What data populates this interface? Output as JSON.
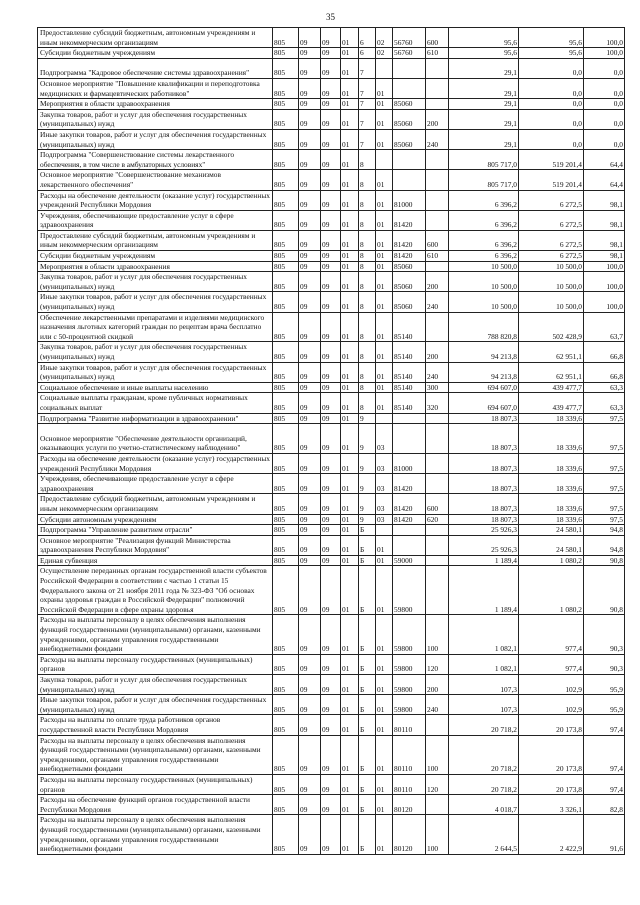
{
  "page_number": "35",
  "rows": [
    [
      "Предоставление субсидий бюджетным, автономным учреждениям и иным некоммерческим организациям",
      "805",
      "09",
      "09",
      "01",
      "6",
      "02",
      "56760",
      "600",
      "95,6",
      "95,6",
      "100,0"
    ],
    [
      "Субсидии бюджетным учреждениям",
      "805",
      "09",
      "09",
      "01",
      "6",
      "02",
      "56760",
      "610",
      "95,6",
      "95,6",
      "100,0"
    ],
    [
      "Подпрограмма \"Кадровое обеспечение системы здравоохранения\"",
      "805",
      "09",
      "09",
      "01",
      "7",
      "",
      "",
      "",
      "29,1",
      "0,0",
      "0,0"
    ],
    [
      "Основное мероприятие \"Повышение квалификации и переподготовка медицинских и фармацевтических работников\"",
      "805",
      "09",
      "09",
      "01",
      "7",
      "01",
      "",
      "",
      "29,1",
      "0,0",
      "0,0"
    ],
    [
      "Мероприятия в области здравоохранения",
      "805",
      "09",
      "09",
      "01",
      "7",
      "01",
      "85060",
      "",
      "29,1",
      "0,0",
      "0,0"
    ],
    [
      "Закупка товаров, работ и услуг для обеспечения государственных (муниципальных) нужд",
      "805",
      "09",
      "09",
      "01",
      "7",
      "01",
      "85060",
      "200",
      "29,1",
      "0,0",
      "0,0"
    ],
    [
      "Иные закупки товаров, работ и услуг для обеспечения государственных (муниципальных) нужд",
      "805",
      "09",
      "09",
      "01",
      "7",
      "01",
      "85060",
      "240",
      "29,1",
      "0,0",
      "0,0"
    ],
    [
      "Подпрограмма \"Совершенствование системы лекарственного обеспечения, в том числе в амбулаторных условиях\"",
      "805",
      "09",
      "09",
      "01",
      "8",
      "",
      "",
      "",
      "805 717,0",
      "519 201,4",
      "64,4"
    ],
    [
      "Основное мероприятие \"Совершенствование механизмов лекарственного обеспечения\"",
      "805",
      "09",
      "09",
      "01",
      "8",
      "01",
      "",
      "",
      "805 717,0",
      "519 201,4",
      "64,4"
    ],
    [
      "Расходы на обеспечение деятельности (оказание услуг) государственных учреждений Республики Мордовия",
      "805",
      "09",
      "09",
      "01",
      "8",
      "01",
      "81000",
      "",
      "6 396,2",
      "6 272,5",
      "98,1"
    ],
    [
      "Учреждения, обеспечивающие предоставление услуг в сфере здравоохранения",
      "805",
      "09",
      "09",
      "01",
      "8",
      "01",
      "81420",
      "",
      "6 396,2",
      "6 272,5",
      "98,1"
    ],
    [
      "Предоставление субсидий бюджетным, автономным учреждениям и иным некоммерческим организациям",
      "805",
      "09",
      "09",
      "01",
      "8",
      "01",
      "81420",
      "600",
      "6 396,2",
      "6 272,5",
      "98,1"
    ],
    [
      "Субсидии бюджетным учреждениям",
      "805",
      "09",
      "09",
      "01",
      "8",
      "01",
      "81420",
      "610",
      "6 396,2",
      "6 272,5",
      "98,1"
    ],
    [
      "Мероприятия в области здравоохранения",
      "805",
      "09",
      "09",
      "01",
      "8",
      "01",
      "85060",
      "",
      "10 500,0",
      "10 500,0",
      "100,0"
    ],
    [
      "Закупка товаров, работ и услуг для обеспечения государственных (муниципальных) нужд",
      "805",
      "09",
      "09",
      "01",
      "8",
      "01",
      "85060",
      "200",
      "10 500,0",
      "10 500,0",
      "100,0"
    ],
    [
      "Иные закупки товаров, работ и услуг для обеспечения государственных (муниципальных) нужд",
      "805",
      "09",
      "09",
      "01",
      "8",
      "01",
      "85060",
      "240",
      "10 500,0",
      "10 500,0",
      "100,0"
    ],
    [
      "Обеспечение лекарственными препаратами и изделиями медицинского назначения льготных категорий граждан по рецептам врача бесплатно или с 50-процентной скидкой",
      "805",
      "09",
      "09",
      "01",
      "8",
      "01",
      "85140",
      "",
      "788 820,8",
      "502 428,9",
      "63,7"
    ],
    [
      "Закупка товаров, работ и услуг для обеспечения государственных (муниципальных) нужд",
      "805",
      "09",
      "09",
      "01",
      "8",
      "01",
      "85140",
      "200",
      "94 213,8",
      "62 951,1",
      "66,8"
    ],
    [
      "Иные закупки товаров, работ и услуг для обеспечения государственных (муниципальных) нужд",
      "805",
      "09",
      "09",
      "01",
      "8",
      "01",
      "85140",
      "240",
      "94 213,8",
      "62 951,1",
      "66,8"
    ],
    [
      "Социальное обеспечение и иные выплаты населению",
      "805",
      "09",
      "09",
      "01",
      "8",
      "01",
      "85140",
      "300",
      "694 607,0",
      "439 477,7",
      "63,3"
    ],
    [
      "Социальные выплаты гражданам, кроме публичных нормативных социальных выплат",
      "805",
      "09",
      "09",
      "01",
      "8",
      "01",
      "85140",
      "320",
      "694 607,0",
      "439 477,7",
      "63,3"
    ],
    [
      "Подпрограмма \"Развитие информатизации в здравоохранении\"",
      "805",
      "09",
      "09",
      "01",
      "9",
      "",
      "",
      "",
      "18 807,3",
      "18 339,6",
      "97,5"
    ],
    [
      "Основное мероприятие \"Обеспечение деятельности организаций, оказывающих услуги по учетно-статистическому наблюдению\"",
      "805",
      "09",
      "09",
      "01",
      "9",
      "03",
      "",
      "",
      "18 807,3",
      "18 339,6",
      "97,5"
    ],
    [
      "Расходы на обеспечение деятельности (оказание услуг) государственных учреждений Республики Мордовия",
      "805",
      "09",
      "09",
      "01",
      "9",
      "03",
      "81000",
      "",
      "18 807,3",
      "18 339,6",
      "97,5"
    ],
    [
      "Учреждения, обеспечивающие предоставление услуг в сфере здравоохранения",
      "805",
      "09",
      "09",
      "01",
      "9",
      "03",
      "81420",
      "",
      "18 807,3",
      "18 339,6",
      "97,5"
    ],
    [
      "Предоставление субсидий бюджетным, автономным учреждениям и иным некоммерческим организациям",
      "805",
      "09",
      "09",
      "01",
      "9",
      "03",
      "81420",
      "600",
      "18 807,3",
      "18 339,6",
      "97,5"
    ],
    [
      "Субсидии автономным учреждениям",
      "805",
      "09",
      "09",
      "01",
      "9",
      "03",
      "81420",
      "620",
      "18 807,3",
      "18 339,6",
      "97,5"
    ],
    [
      "Подпрограмма \"Управление развитием отрасли\"",
      "805",
      "09",
      "09",
      "01",
      "Б",
      "",
      "",
      "",
      "25 926,3",
      "24 580,1",
      "94,8"
    ],
    [
      "Основное мероприятие \"Реализация функций Министерства здравоохранения Республики Мордовия\"",
      "805",
      "09",
      "09",
      "01",
      "Б",
      "01",
      "",
      "",
      "25 926,3",
      "24 580,1",
      "94,8"
    ],
    [
      "Единая субвенция",
      "805",
      "09",
      "09",
      "01",
      "Б",
      "01",
      "59000",
      "",
      "1 189,4",
      "1 080,2",
      "90,8"
    ],
    [
      "Осуществление переданных органам государственной власти субъектов Российской Федерации в соответствии с частью 1 статьи 15 Федерального закона от 21 ноября 2011 года № 323-ФЗ \"Об основах охраны здоровья граждан в Российской Федерации\" полномочий Российской Федерации в сфере охраны здоровья",
      "805",
      "09",
      "09",
      "01",
      "Б",
      "01",
      "59800",
      "",
      "1 189,4",
      "1 080,2",
      "90,8"
    ],
    [
      "Расходы на выплаты персоналу в целях обеспечения выполнения функций государственными (муниципальными) органами, казенными учреждениями, органами управления государственными внебюджетными фондами",
      "805",
      "09",
      "09",
      "01",
      "Б",
      "01",
      "59800",
      "100",
      "1 082,1",
      "977,4",
      "90,3"
    ],
    [
      "Расходы на выплаты персоналу государственных (муниципальных) органов",
      "805",
      "09",
      "09",
      "01",
      "Б",
      "01",
      "59800",
      "120",
      "1 082,1",
      "977,4",
      "90,3"
    ],
    [
      "Закупка товаров, работ и услуг для обеспечения государственных (муниципальных) нужд",
      "805",
      "09",
      "09",
      "01",
      "Б",
      "01",
      "59800",
      "200",
      "107,3",
      "102,9",
      "95,9"
    ],
    [
      "Иные закупки товаров, работ и услуг для обеспечения государственных (муниципальных) нужд",
      "805",
      "09",
      "09",
      "01",
      "Б",
      "01",
      "59800",
      "240",
      "107,3",
      "102,9",
      "95,9"
    ],
    [
      "Расходы на выплаты по оплате труда работников органов государственной власти Республики Мордовия",
      "805",
      "09",
      "09",
      "01",
      "Б",
      "01",
      "80110",
      "",
      "20 718,2",
      "20 173,8",
      "97,4"
    ],
    [
      "Расходы на выплаты персоналу в целях обеспечения выполнения функций государственными (муниципальными) органами, казенными учреждениями, органами управления государственными внебюджетными фондами",
      "805",
      "09",
      "09",
      "01",
      "Б",
      "01",
      "80110",
      "100",
      "20 718,2",
      "20 173,8",
      "97,4"
    ],
    [
      "Расходы на выплаты персоналу государственных (муниципальных) органов",
      "805",
      "09",
      "09",
      "01",
      "Б",
      "01",
      "80110",
      "120",
      "20 718,2",
      "20 173,8",
      "97,4"
    ],
    [
      "Расходы на обеспечение функций органов государственной власти Республики Мордовия",
      "805",
      "09",
      "09",
      "01",
      "Б",
      "01",
      "80120",
      "",
      "4 018,7",
      "3 326,1",
      "82,8"
    ],
    [
      "Расходы на выплаты персоналу в целях обеспечения выполнения функций государственными (муниципальными) органами, казенными учреждениями, органами управления государственными внебюджетными фондами",
      "805",
      "09",
      "09",
      "01",
      "Б",
      "01",
      "80120",
      "100",
      "2 644,5",
      "2 422,9",
      "91,6"
    ]
  ]
}
